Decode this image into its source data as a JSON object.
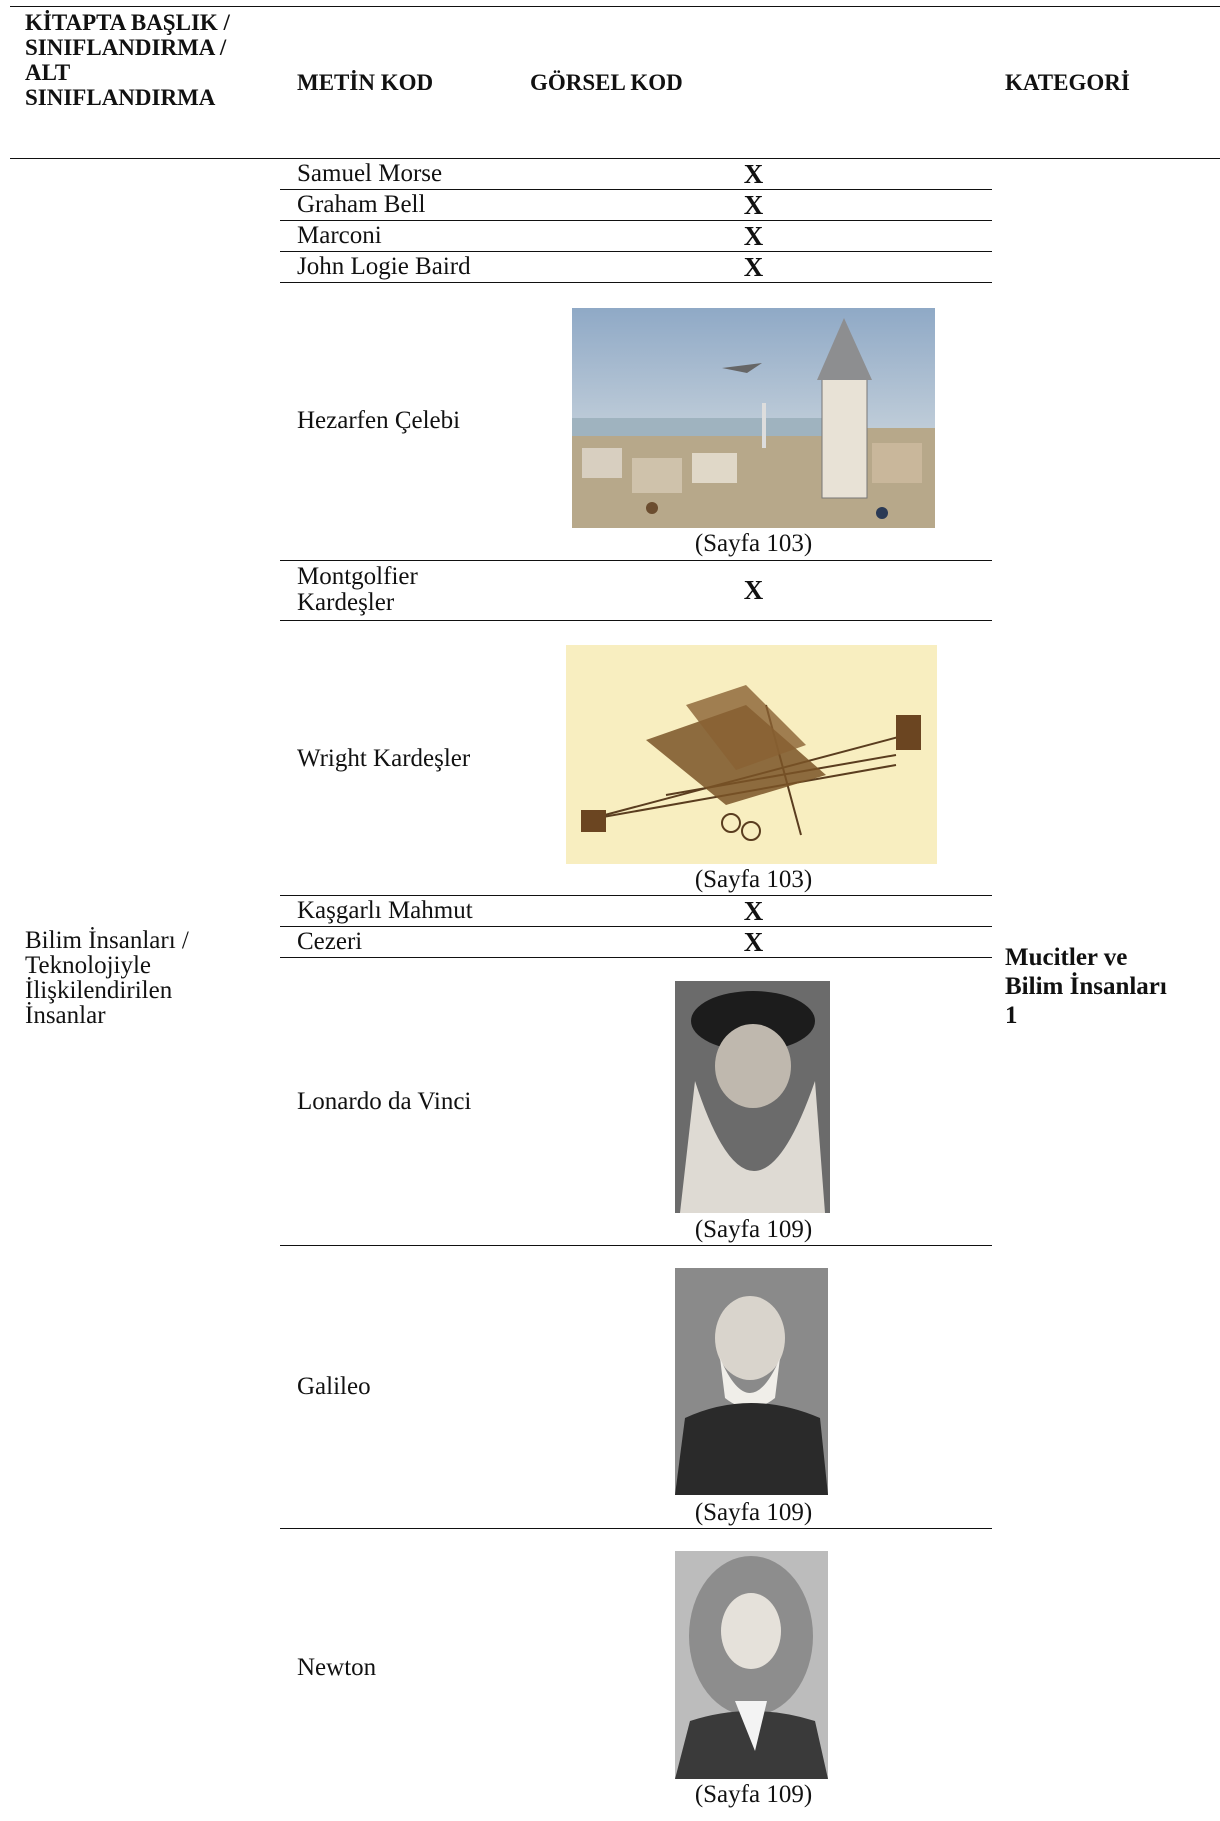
{
  "header": [
    "KİTAPTA BAŞLIK / SINIFLANDIRMA / ALT SINIFLANDIRMA",
    "METİN KOD",
    "GÖRSEL KOD",
    "KATEGORİ"
  ],
  "group": "Bilim İnsanları / Teknolojiyle İlişkilendirilen İnsanlar",
  "category": "Mucitler ve Bilim İnsanları 1",
  "rows": [
    {
      "text": "Samuel Morse",
      "visual": "X"
    },
    {
      "text": "Graham Bell",
      "visual": "X"
    },
    {
      "text": "Marconi",
      "visual": "X"
    },
    {
      "text": "John Logie Baird",
      "visual": "X"
    },
    {
      "text": "Hezarfen Çelebi",
      "visual": "(Sayfa 103)"
    },
    {
      "text": "Montgolfier Kardeşler",
      "visual": "X"
    },
    {
      "text": "Wright Kardeşler",
      "visual": "(Sayfa 103)"
    },
    {
      "text": "Kaşgarlı Mahmut",
      "visual": "X"
    },
    {
      "text": "Cezeri",
      "visual": "X"
    },
    {
      "text": "Lonardo da Vinci",
      "visual": "(Sayfa 109)"
    },
    {
      "text": "Galileo",
      "visual": "(Sayfa 109)"
    },
    {
      "text": "Newton",
      "visual": "(Sayfa 109)"
    }
  ]
}
